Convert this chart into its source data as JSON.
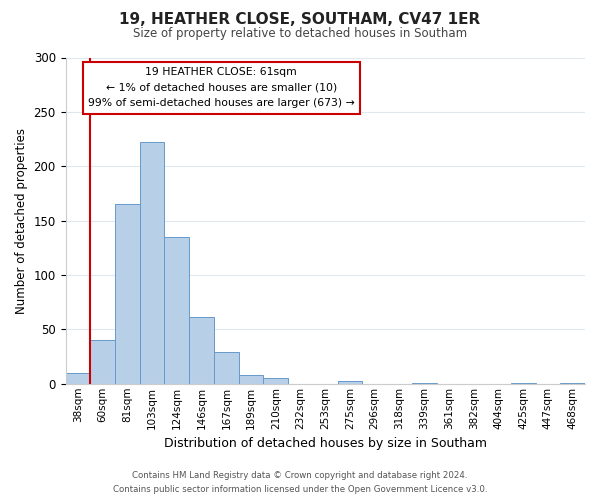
{
  "title": "19, HEATHER CLOSE, SOUTHAM, CV47 1ER",
  "subtitle": "Size of property relative to detached houses in Southam",
  "xlabel": "Distribution of detached houses by size in Southam",
  "ylabel": "Number of detached properties",
  "bar_labels": [
    "38sqm",
    "60sqm",
    "81sqm",
    "103sqm",
    "124sqm",
    "146sqm",
    "167sqm",
    "189sqm",
    "210sqm",
    "232sqm",
    "253sqm",
    "275sqm",
    "296sqm",
    "318sqm",
    "339sqm",
    "361sqm",
    "382sqm",
    "404sqm",
    "425sqm",
    "447sqm",
    "468sqm"
  ],
  "bar_values": [
    10,
    40,
    165,
    222,
    135,
    61,
    29,
    8,
    5,
    0,
    0,
    3,
    0,
    0,
    1,
    0,
    0,
    0,
    1,
    0,
    1
  ],
  "bar_color": "#b8cfe8",
  "bar_edge_color": "#6699cc",
  "ylim": [
    0,
    300
  ],
  "yticks": [
    0,
    50,
    100,
    150,
    200,
    250,
    300
  ],
  "vline_color": "#cc0000",
  "annotation_title": "19 HEATHER CLOSE: 61sqm",
  "annotation_line1": "← 1% of detached houses are smaller (10)",
  "annotation_line2": "99% of semi-detached houses are larger (673) →",
  "annotation_box_color": "#ffffff",
  "annotation_box_edge": "#cc0000",
  "footer1": "Contains HM Land Registry data © Crown copyright and database right 2024.",
  "footer2": "Contains public sector information licensed under the Open Government Licence v3.0.",
  "background_color": "#ffffff",
  "grid_color": "#dde8f0"
}
